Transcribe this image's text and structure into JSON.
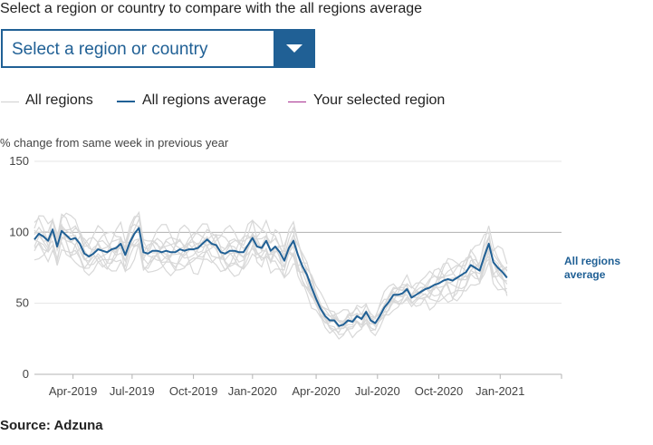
{
  "prompt": "Select a region or country to compare with the all regions average",
  "select": {
    "value": "Select a region or country",
    "caret_icon": "chevron-down-icon"
  },
  "legend": [
    {
      "label": "All regions",
      "color": "#d8d8d8"
    },
    {
      "label": "All regions average",
      "color": "#206095"
    },
    {
      "label": "Your selected region",
      "color": "#a8308f"
    }
  ],
  "ylabel": "% change from same week in previous year",
  "source": "Source: Adzuna",
  "colors": {
    "average": "#206095",
    "regions": "#d8d8d8",
    "axis": "#b3b3b3",
    "ref_line": "#b3b3b3"
  },
  "chart_data": {
    "type": "line",
    "title": "",
    "ylabel": "% change from same week in previous year",
    "ylim": [
      0,
      150
    ],
    "yticks": [
      0,
      50,
      100,
      150
    ],
    "reference_line": 100,
    "x_weeks": 117,
    "xticks": [
      {
        "label": "Apr-2019",
        "week": 8.5
      },
      {
        "label": "Jul-2019",
        "week": 21.5
      },
      {
        "label": "Oct-2019",
        "week": 35
      },
      {
        "label": "Jan-2020",
        "week": 48
      },
      {
        "label": "Apr-2020",
        "week": 62
      },
      {
        "label": "Jul-2020",
        "week": 75.5
      },
      {
        "label": "Oct-2020",
        "week": 89
      },
      {
        "label": "Jan-2021",
        "week": 102.5
      }
    ],
    "end_label": [
      "All regions",
      "average"
    ],
    "series": [
      {
        "name": "All regions average",
        "values": [
          95,
          99,
          97,
          94,
          102,
          90,
          101,
          98,
          95,
          96,
          92,
          85,
          83,
          85,
          88,
          87,
          86,
          88,
          89,
          92,
          84,
          93,
          99,
          103,
          86,
          85,
          87,
          87,
          86,
          87,
          86,
          86,
          88,
          87,
          88,
          88,
          89,
          92,
          95,
          92,
          91,
          86,
          85,
          87,
          87,
          86,
          86,
          91,
          96,
          90,
          89,
          94,
          87,
          90,
          86,
          80,
          89,
          94,
          84,
          76,
          70,
          61,
          53,
          46,
          41,
          38,
          38,
          34,
          35,
          38,
          37,
          41,
          39,
          44,
          38,
          36,
          41,
          47,
          51,
          56,
          56,
          57,
          60,
          54,
          56,
          58,
          60,
          61,
          63,
          64,
          66,
          67,
          66,
          68,
          70,
          72,
          77,
          75,
          73,
          83,
          92,
          79,
          75,
          72,
          68
        ]
      }
    ]
  }
}
